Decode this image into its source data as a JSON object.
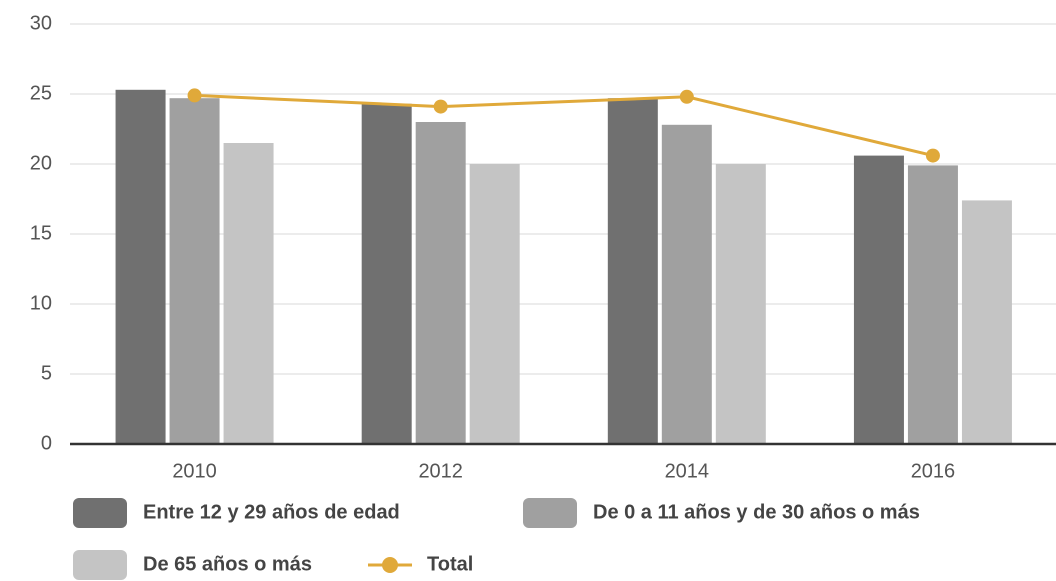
{
  "chart_data": {
    "type": "bar",
    "categories": [
      "2010",
      "2012",
      "2014",
      "2016"
    ],
    "series": [
      {
        "name": "Entre 12 y 29 años de edad",
        "color": "#707070",
        "values": [
          25.3,
          24.3,
          24.7,
          20.6
        ]
      },
      {
        "name": "De 0 a 11 años y de 30 años o más",
        "color": "#a0a0a0",
        "values": [
          24.7,
          23.0,
          22.8,
          19.9
        ]
      },
      {
        "name": "De 65 años o más",
        "color": "#c4c4c4",
        "values": [
          21.5,
          20.0,
          20.0,
          17.4
        ]
      },
      {
        "name": "Total",
        "color": "#e0a93a",
        "type": "line",
        "values": [
          24.9,
          24.1,
          24.8,
          20.6
        ]
      }
    ],
    "ylim": [
      0,
      30
    ],
    "yticks": [
      0,
      5,
      10,
      15,
      20,
      25,
      30
    ],
    "grid": true,
    "legend": "bottom"
  }
}
